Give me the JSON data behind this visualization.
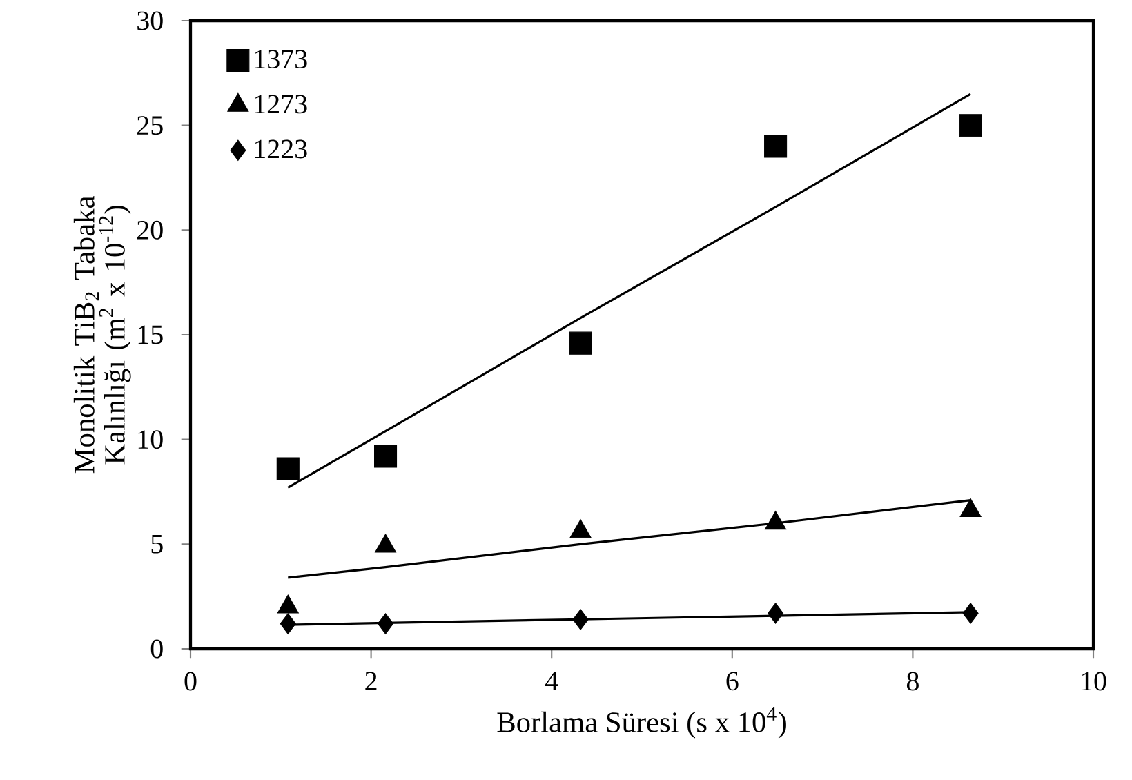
{
  "chart_data": {
    "type": "scatter",
    "xlabel": "Borlama Süresi (s x 10$^{4}$)",
    "ylabel": "Monolitik  TiB$_{2}$ Tabaka Kalınlığı  (m$^{2}$ x 10$^{-12}$)",
    "xlim": [
      0,
      10
    ],
    "xticks": [
      0,
      2,
      4,
      6,
      8,
      10
    ],
    "ylim": [
      0,
      30
    ],
    "yticks": [
      0,
      5,
      10,
      15,
      20,
      25,
      30
    ],
    "grid": false,
    "legend": "top left",
    "x": [
      1.08,
      2.16,
      4.32,
      6.48,
      8.64
    ],
    "series": [
      {
        "name": "1373",
        "color": "#000000",
        "marker": "square",
        "values": [
          8.6,
          9.2,
          14.6,
          24,
          25
        ]
      },
      {
        "name": "1273",
        "color": "#000000",
        "marker": "triangle",
        "values": [
          2.0,
          4.9,
          5.6,
          6.0,
          6.6
        ]
      },
      {
        "name": "1223",
        "color": "#000000",
        "marker": "diamond",
        "values": [
          1.2,
          1.2,
          1.4,
          1.7,
          1.7
        ]
      },
      {
        "type": "line",
        "color": "#000000",
        "marker": "none",
        "values": [
          7.7,
          10.4,
          15.8,
          21.1,
          26.5
        ]
      },
      {
        "type": "line",
        "color": "#000000",
        "marker": "none",
        "values": [
          3.4,
          3.9,
          5.0,
          6.0,
          7.1
        ]
      },
      {
        "type": "line",
        "color": "#000000",
        "marker": "none",
        "values": [
          1.15,
          1.24,
          1.41,
          1.58,
          1.75
        ]
      }
    ]
  }
}
